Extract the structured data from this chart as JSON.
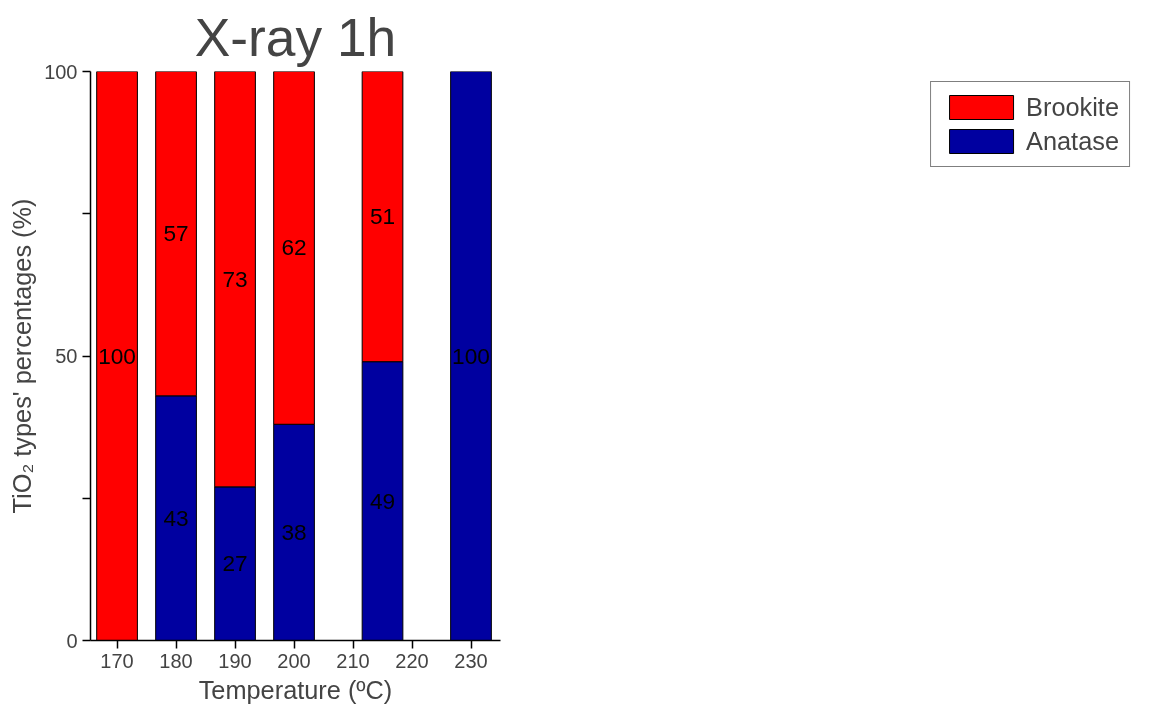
{
  "chart_data": {
    "type": "bar",
    "title": "X-ray 1h",
    "xlabel": "Temperature (ºC)",
    "ylabel": "TiO₂ types' percentages (%)",
    "x": [
      170,
      180,
      190,
      200,
      215,
      230
    ],
    "series": [
      {
        "name": "Anatase",
        "color": "#0000a0",
        "values": [
          null,
          43,
          27,
          38,
          49,
          100
        ]
      },
      {
        "name": "Brookite",
        "color": "#ff0000",
        "values": [
          100,
          57,
          73,
          62,
          51,
          null
        ]
      }
    ],
    "stacked": true,
    "data_labels": true,
    "legend": "right",
    "grid": false,
    "xlim": [
      165.5,
      235
    ],
    "xticks": [
      170,
      180,
      190,
      200,
      210,
      220,
      230
    ],
    "ylim": [
      0,
      100
    ],
    "yticks": [
      0,
      {
        "value": 25,
        "label": null
      },
      50,
      {
        "value": 75,
        "label": null
      },
      100
    ]
  }
}
